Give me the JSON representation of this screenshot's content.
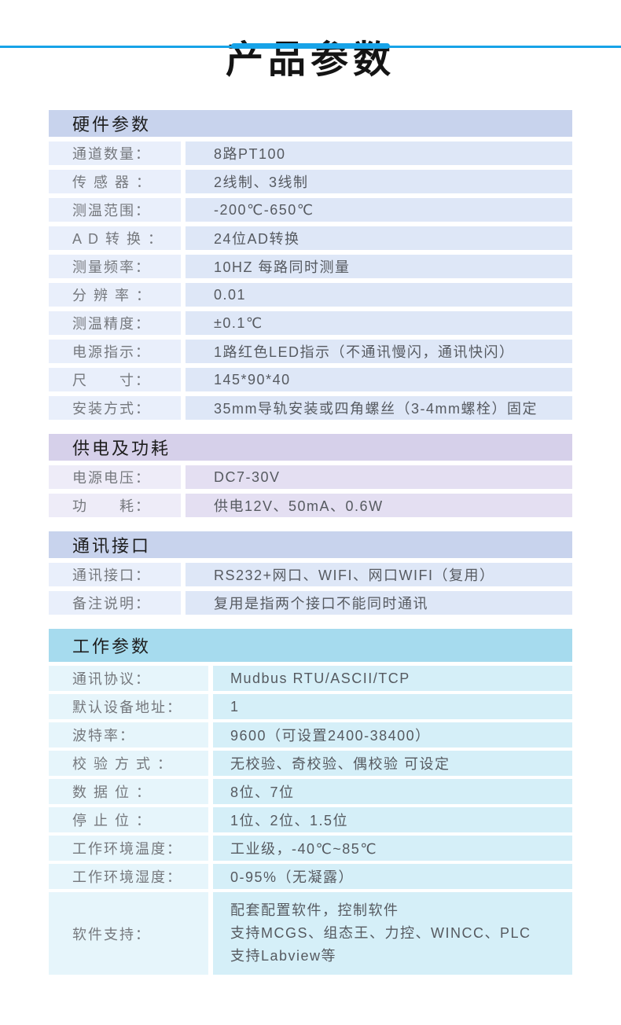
{
  "page": {
    "title": "产品参数",
    "accent_color": "#17a3e8",
    "background_color": "#ffffff"
  },
  "themes": {
    "blue": {
      "header_bg": "#c8d3ed",
      "label_bg": "#e9effb",
      "value_bg": "#dee7f7"
    },
    "purple": {
      "header_bg": "#d6d0ea",
      "label_bg": "#eeecf8",
      "value_bg": "#e4dff2"
    },
    "cyan": {
      "header_bg": "#a6dbee",
      "label_bg": "#e6f5fb",
      "value_bg": "#d5eff8"
    }
  },
  "sections": [
    {
      "title": "硬件参数",
      "theme": "blue",
      "rows": [
        {
          "label": "通道数量：",
          "value": "8路PT100"
        },
        {
          "label": "传 感 器 ：",
          "value": "2线制、3线制"
        },
        {
          "label": "测温范围：",
          "value": "-200℃-650℃"
        },
        {
          "label": "A D 转 换 ：",
          "value": "24位AD转换"
        },
        {
          "label": "测量频率：",
          "value": "10HZ 每路同时测量"
        },
        {
          "label": "分 辨 率 ：",
          "value": "0.01"
        },
        {
          "label": "测温精度：",
          "value": "±0.1℃"
        },
        {
          "label": "电源指示：",
          "value": "1路红色LED指示（不通讯慢闪，通讯快闪）"
        },
        {
          "label": "尺　　寸：",
          "value": "145*90*40"
        },
        {
          "label": "安装方式：",
          "value": "35mm导轨安装或四角螺丝（3-4mm螺栓）固定"
        }
      ]
    },
    {
      "title": "供电及功耗",
      "theme": "purple",
      "rows": [
        {
          "label": "电源电压：",
          "value": "DC7-30V"
        },
        {
          "label": "功　　耗：",
          "value": "供电12V、50mA、0.6W"
        }
      ]
    },
    {
      "title": "通讯接口",
      "theme": "blue",
      "rows": [
        {
          "label": "通讯接口：",
          "value": "RS232+网口、WIFI、网口WIFI（复用）"
        },
        {
          "label": "备注说明：",
          "value": "复用是指两个接口不能同时通讯"
        }
      ]
    },
    {
      "title": "工作参数",
      "theme": "cyan",
      "rows": [
        {
          "label": "通讯协议：",
          "value": "Mudbus RTU/ASCII/TCP"
        },
        {
          "label": "默认设备地址：",
          "value": "1"
        },
        {
          "label": "波特率：",
          "value": "9600（可设置2400-38400）"
        },
        {
          "label": "校 验 方 式 ：",
          "value": "无校验、奇校验、偶校验 可设定"
        },
        {
          "label": "数 据 位 ：",
          "value": "8位、7位"
        },
        {
          "label": "停 止 位 ：",
          "value": "1位、2位、1.5位"
        },
        {
          "label": "工作环境温度：",
          "value": "工业级，-40℃~85℃"
        },
        {
          "label": "工作环境湿度：",
          "value": "0-95%（无凝露）"
        },
        {
          "label": "软件支持：",
          "value": [
            "配套配置软件，控制软件",
            "支持MCGS、组态王、力控、WINCC、PLC",
            "支持Labview等"
          ]
        }
      ]
    }
  ]
}
